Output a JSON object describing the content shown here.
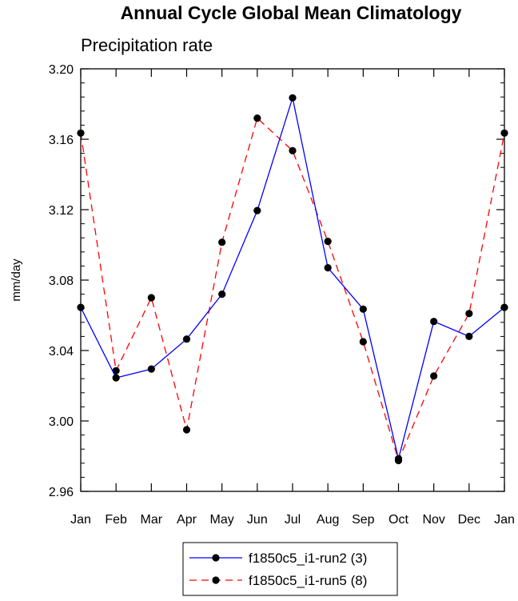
{
  "chart_data": {
    "type": "line",
    "title": "Annual Cycle Global Mean Climatology",
    "subtitle": "Precipitation rate",
    "xlabel": "",
    "ylabel": "mm/day",
    "categories": [
      "Jan",
      "Feb",
      "Mar",
      "Apr",
      "May",
      "Jun",
      "Jul",
      "Aug",
      "Sep",
      "Oct",
      "Nov",
      "Dec",
      "Jan"
    ],
    "ylim": [
      2.96,
      3.2
    ],
    "yticks": [
      2.96,
      3.0,
      3.04,
      3.08,
      3.12,
      3.16,
      3.2
    ],
    "ytick_labels": [
      "2.96",
      "3.00",
      "3.04",
      "3.08",
      "3.12",
      "3.16",
      "3.20"
    ],
    "grid": false,
    "legend_position": "bottom-center",
    "series": [
      {
        "name": "f1850c5_i1-run2 (3)",
        "color": "#0000ff",
        "line_style": "solid",
        "marker": "filled-circle",
        "values": [
          3.0645,
          3.0245,
          3.0295,
          3.0465,
          3.072,
          3.1195,
          3.1835,
          3.087,
          3.0635,
          2.9785,
          3.0565,
          3.048,
          3.0645
        ]
      },
      {
        "name": "f1850c5_i1-run5 (8)",
        "color": "#ff0000",
        "line_style": "dashed",
        "marker": "filled-circle",
        "values": [
          3.1635,
          3.0285,
          3.07,
          2.995,
          3.1015,
          3.172,
          3.1535,
          3.102,
          3.045,
          2.9775,
          3.0255,
          3.061,
          3.1635
        ]
      }
    ]
  }
}
